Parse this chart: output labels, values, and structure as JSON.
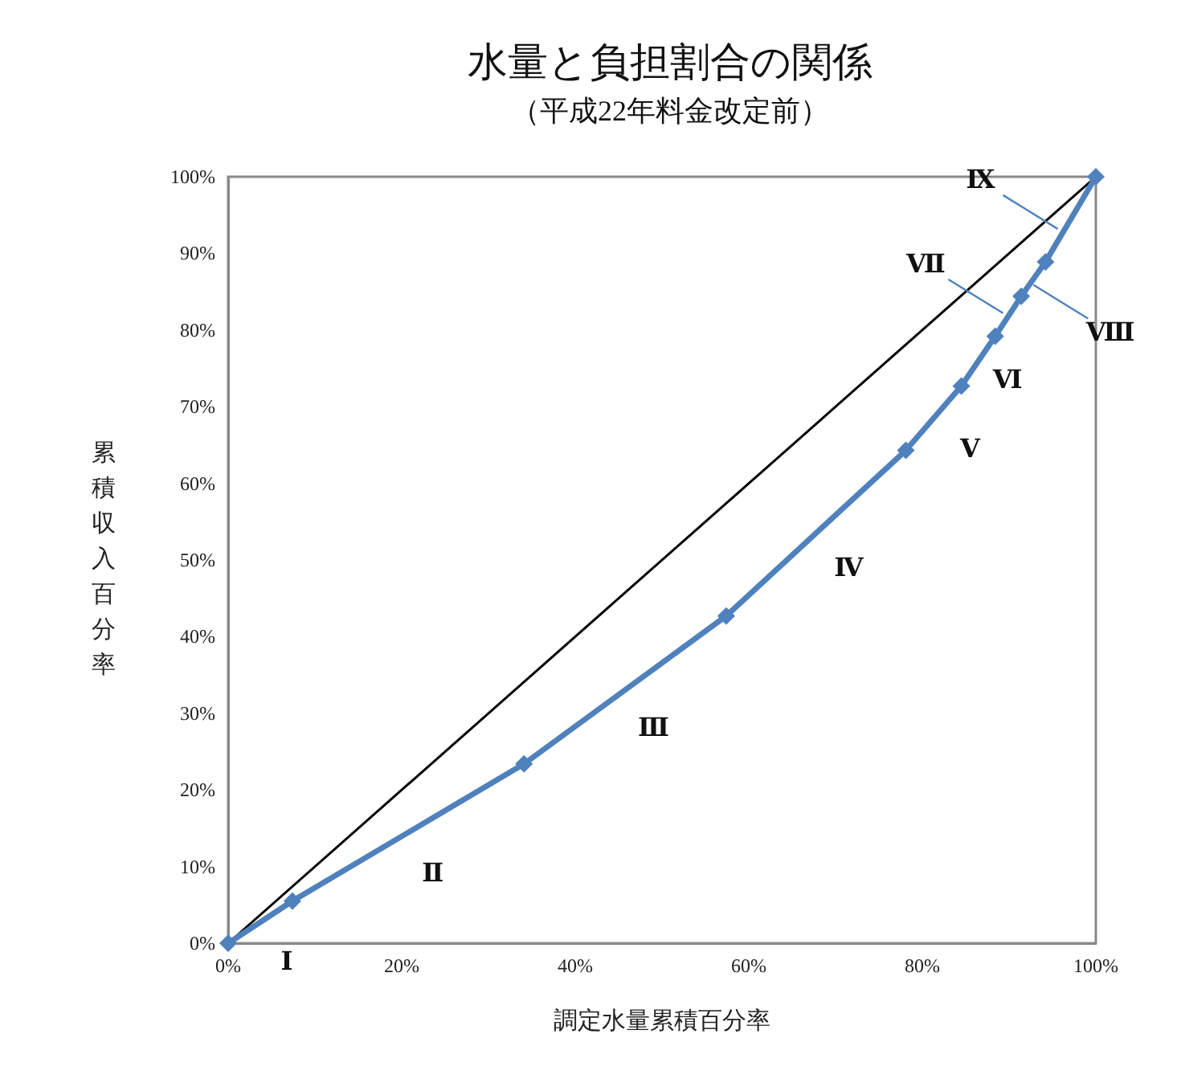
{
  "chart_data": {
    "type": "line",
    "title": "水量と負担割合の関係",
    "subtitle": "（平成22年料金改定前）",
    "xlabel": "調定水量累積百分率",
    "ylabel": "累積収入百分率",
    "series": [
      {
        "color": "#4f81bd",
        "x": [
          0,
          7.4,
          34.1,
          57.4,
          78.1,
          84.5,
          88.4,
          91.4,
          94.2,
          100
        ],
        "values": [
          0,
          5.5,
          23.4,
          42.7,
          64.3,
          72.7,
          79.2,
          84.4,
          88.9,
          100
        ]
      },
      {
        "color": "#000000",
        "marker": "none",
        "x": [
          0,
          100
        ],
        "values": [
          0,
          100
        ]
      }
    ],
    "marker": "diamond",
    "line_style": "solid",
    "grid": false,
    "xlim": [
      0,
      100
    ],
    "xticks": [
      {
        "value": 0,
        "label": "0%"
      },
      {
        "value": 20,
        "label": "20%"
      },
      {
        "value": 40,
        "label": "40%"
      },
      {
        "value": 60,
        "label": "60%"
      },
      {
        "value": 80,
        "label": "80%"
      },
      {
        "value": 100,
        "label": "100%"
      }
    ],
    "ylim": [
      0,
      100
    ],
    "yticks": [
      {
        "value": 0,
        "label": "0%"
      },
      {
        "value": 10,
        "label": "10%"
      },
      {
        "value": 20,
        "label": "20%"
      },
      {
        "value": 30,
        "label": "30%"
      },
      {
        "value": 40,
        "label": "40%"
      },
      {
        "value": 50,
        "label": "50%"
      },
      {
        "value": 60,
        "label": "60%"
      },
      {
        "value": 70,
        "label": "70%"
      },
      {
        "value": 80,
        "label": "80%"
      },
      {
        "value": 90,
        "label": "90%"
      },
      {
        "value": 100,
        "label": "100%"
      }
    ],
    "annotations": [
      "Ⅰ",
      "Ⅱ",
      "Ⅲ",
      "Ⅳ",
      "Ⅴ",
      "Ⅵ",
      {
        "text": "Ⅶ",
        "x": 89.3,
        "y": 82.2
      },
      {
        "text": "Ⅷ",
        "x": 92.8,
        "y": 85.9
      },
      {
        "text": "Ⅸ",
        "x": 95.6,
        "y": 93.2
      }
    ]
  }
}
